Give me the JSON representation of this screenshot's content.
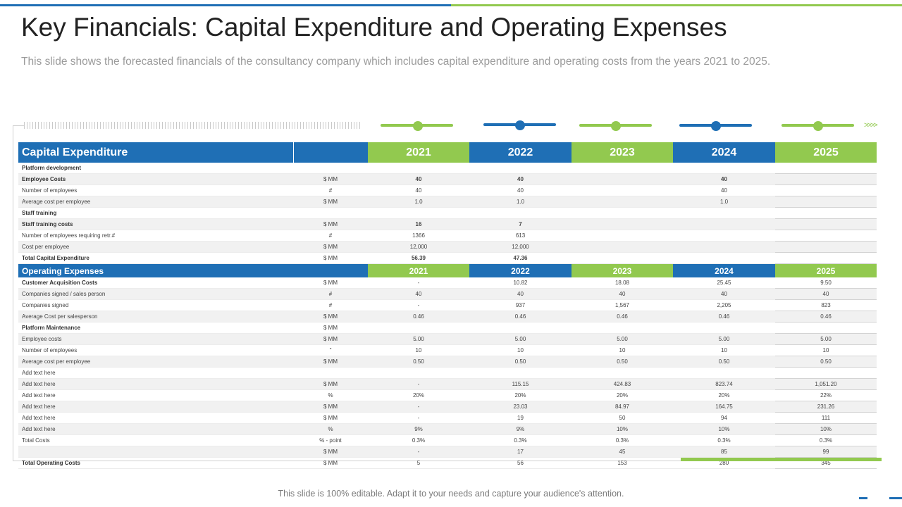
{
  "header": {
    "title": "Key Financials: Capital Expenditure and Operating Expenses",
    "subtitle": "This slide shows the forecasted financials of the consultancy  company which includes capital expenditure and operating costs from the years 2021 to 2025."
  },
  "timeline": {
    "arrows": ">>>>"
  },
  "colors": {
    "blue": "#1f6fb5",
    "green": "#92c94f"
  },
  "capex": {
    "title": "Capital Expenditure",
    "years": [
      "2021",
      "2022",
      "2023",
      "2024",
      "2025"
    ],
    "rows": [
      {
        "label": "Platform development",
        "unit": "",
        "values": [
          "",
          "",
          "",
          "",
          ""
        ],
        "bold": true,
        "shade": false
      },
      {
        "label": "Employee  Costs",
        "unit": "$ MM",
        "values": [
          "40",
          "40",
          "",
          "40",
          ""
        ],
        "bold": true,
        "shade": true
      },
      {
        "label": "Number of employees",
        "unit": "#",
        "values": [
          "40",
          "40",
          "",
          "40",
          ""
        ],
        "bold": false,
        "shade": false
      },
      {
        "label": "Average cost per employee",
        "unit": "$ MM",
        "values": [
          "1.0",
          "1.0",
          "",
          "1.0",
          ""
        ],
        "bold": false,
        "shade": true
      },
      {
        "label": "Staff training",
        "unit": "",
        "values": [
          "",
          "",
          "",
          "",
          ""
        ],
        "bold": true,
        "shade": false
      },
      {
        "label": "Staff training costs",
        "unit": "$ MM",
        "values": [
          "16",
          "7",
          "",
          "",
          ""
        ],
        "bold": true,
        "shade": true
      },
      {
        "label": "Number of employees requiring retr.#",
        "unit": "#",
        "values": [
          "1366",
          "613",
          "",
          "",
          ""
        ],
        "bold": false,
        "shade": false
      },
      {
        "label": "Cost per employee",
        "unit": "$ MM",
        "values": [
          "12,000",
          "12,000",
          "",
          "",
          ""
        ],
        "bold": false,
        "shade": true
      },
      {
        "label": "Total Capital Expenditure",
        "unit": "$ MM",
        "values": [
          "56.39",
          "47.36",
          "",
          "",
          ""
        ],
        "bold": true,
        "shade": false
      }
    ]
  },
  "opex": {
    "title": "Operating Expenses",
    "years": [
      "2021",
      "2022",
      "2023",
      "2024",
      "2025"
    ],
    "rows": [
      {
        "label": "Customer Acquisition Costs",
        "unit": "$ MM",
        "values": [
          "-",
          "10.82",
          "18.08",
          "25.45",
          "9.50"
        ],
        "bold": true,
        "shade": false
      },
      {
        "label": "Companies signed / sales person",
        "unit": "#",
        "values": [
          "40",
          "40",
          "40",
          "40",
          "40"
        ],
        "bold": false,
        "shade": true
      },
      {
        "label": "Companies signed",
        "unit": "#",
        "values": [
          "-",
          "937",
          "1,567",
          "2,205",
          "823"
        ],
        "bold": false,
        "shade": false
      },
      {
        "label": "Average Cost per salesperson",
        "unit": "$ MM",
        "values": [
          "0.46",
          "0.46",
          "0.46",
          "0.46",
          "0.46"
        ],
        "bold": false,
        "shade": true
      },
      {
        "label": "Platform Maintenance",
        "unit": "$ MM",
        "values": [
          "",
          "",
          "",
          "",
          ""
        ],
        "bold": true,
        "shade": false
      },
      {
        "label": "Employee costs",
        "unit": "$ MM",
        "values": [
          "5.00",
          "5.00",
          "5.00",
          "5.00",
          "5.00"
        ],
        "bold": false,
        "shade": true
      },
      {
        "label": "Number of employees",
        "unit": "\"",
        "values": [
          "10",
          "10",
          "10",
          "10",
          "10"
        ],
        "bold": false,
        "shade": false
      },
      {
        "label": "Average cost per employee",
        "unit": "$ MM",
        "values": [
          "0.50",
          "0.50",
          "0.50",
          "0.50",
          "0.50"
        ],
        "bold": false,
        "shade": true
      },
      {
        "label": "Add text here",
        "unit": "",
        "values": [
          "",
          "",
          "",
          "",
          ""
        ],
        "bold": false,
        "shade": false
      },
      {
        "label": "Add text here",
        "unit": "$ MM",
        "values": [
          "-",
          "115.15",
          "424.83",
          "823.74",
          "1,051.20"
        ],
        "bold": false,
        "shade": true
      },
      {
        "label": "Add text here",
        "unit": "%",
        "values": [
          "20%",
          "20%",
          "20%",
          "20%",
          "22%"
        ],
        "bold": false,
        "shade": false
      },
      {
        "label": "Add text here",
        "unit": "$ MM",
        "values": [
          "-",
          "23.03",
          "84.97",
          "164.75",
          "231.26"
        ],
        "bold": false,
        "shade": true
      },
      {
        "label": "Add text here",
        "unit": "$ MM",
        "values": [
          "-",
          "19",
          "50",
          "94",
          "111"
        ],
        "bold": false,
        "shade": false
      },
      {
        "label": "Add text here",
        "unit": "%",
        "values": [
          "9%",
          "9%",
          "10%",
          "10%",
          "10%"
        ],
        "bold": false,
        "shade": true
      },
      {
        "label": "Total Costs",
        "unit": "% - point",
        "values": [
          "0.3%",
          "0.3%",
          "0.3%",
          "0.3%",
          "0.3%"
        ],
        "bold": false,
        "shade": false
      },
      {
        "label": "",
        "unit": "$ MM",
        "values": [
          "-",
          "17",
          "45",
          "85",
          "99"
        ],
        "bold": false,
        "shade": true
      },
      {
        "label": "Total Operating Costs",
        "unit": "$ MM",
        "values": [
          "5",
          "56",
          "153",
          "280",
          "345"
        ],
        "bold": true,
        "shade": false
      }
    ]
  },
  "footer": {
    "text": "This slide is 100% editable. Adapt it to your needs and capture your audience's attention."
  }
}
